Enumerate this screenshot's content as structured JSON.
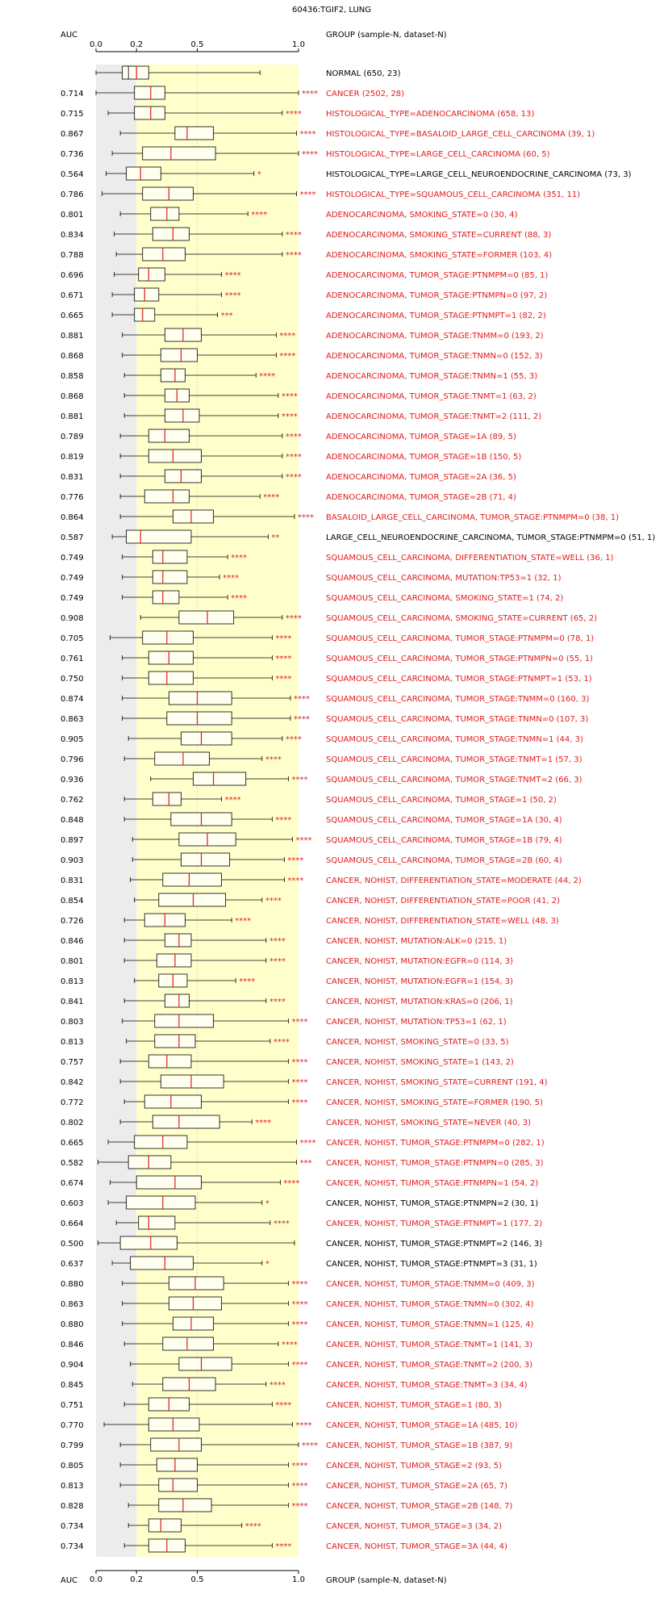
{
  "chart_data": {
    "type": "boxplot",
    "title": "60436:TGIF2, LUNG",
    "header_left": "AUC",
    "header_right": "GROUP (sample-N, dataset-N)",
    "x_ticks": [
      "0.0",
      "0.2",
      "0.5",
      "1.0"
    ],
    "xlim": [
      0,
      1
    ],
    "rows": [
      {
        "auc": "",
        "label": "NORMAL (650, 23)",
        "stars": "",
        "sig": false,
        "box": [
          0.0,
          0.13,
          0.2,
          0.26,
          0.81
        ]
      },
      {
        "auc": "0.714",
        "label": "CANCER (2502, 28)",
        "stars": "****",
        "sig": true,
        "box": [
          0.0,
          0.19,
          0.27,
          0.34,
          1.0
        ]
      },
      {
        "auc": "0.715",
        "label": "HISTOLOGICAL_TYPE=ADENOCARCINOMA (658, 13)",
        "stars": "****",
        "sig": true,
        "box": [
          0.06,
          0.19,
          0.27,
          0.34,
          0.92
        ]
      },
      {
        "auc": "0.867",
        "label": "HISTOLOGICAL_TYPE=BASALOID_LARGE_CELL_CARCINOMA (39, 1)",
        "stars": "****",
        "sig": true,
        "box": [
          0.12,
          0.39,
          0.45,
          0.58,
          0.99
        ]
      },
      {
        "auc": "0.736",
        "label": "HISTOLOGICAL_TYPE=LARGE_CELL_CARCINOMA (60, 5)",
        "stars": "****",
        "sig": true,
        "box": [
          0.08,
          0.23,
          0.37,
          0.59,
          1.0
        ]
      },
      {
        "auc": "0.564",
        "label": "HISTOLOGICAL_TYPE=LARGE_CELL_NEUROENDOCRINE_CARCINOMA (73, 3)",
        "stars": "*",
        "sig": false,
        "box": [
          0.05,
          0.15,
          0.22,
          0.32,
          0.78
        ]
      },
      {
        "auc": "0.786",
        "label": "HISTOLOGICAL_TYPE=SQUAMOUS_CELL_CARCINOMA (351, 11)",
        "stars": "****",
        "sig": true,
        "box": [
          0.03,
          0.23,
          0.36,
          0.48,
          0.99
        ]
      },
      {
        "auc": "0.801",
        "label": "ADENOCARCINOMA, SMOKING_STATE=0 (30, 4)",
        "stars": "****",
        "sig": true,
        "box": [
          0.12,
          0.27,
          0.35,
          0.41,
          0.75
        ]
      },
      {
        "auc": "0.834",
        "label": "ADENOCARCINOMA, SMOKING_STATE=CURRENT (88, 3)",
        "stars": "****",
        "sig": true,
        "box": [
          0.09,
          0.28,
          0.38,
          0.46,
          0.92
        ]
      },
      {
        "auc": "0.788",
        "label": "ADENOCARCINOMA, SMOKING_STATE=FORMER (103, 4)",
        "stars": "****",
        "sig": true,
        "box": [
          0.1,
          0.23,
          0.33,
          0.44,
          0.92
        ]
      },
      {
        "auc": "0.696",
        "label": "ADENOCARCINOMA, TUMOR_STAGE:PTNMPM=0 (85, 1)",
        "stars": "****",
        "sig": true,
        "box": [
          0.09,
          0.21,
          0.26,
          0.34,
          0.62
        ]
      },
      {
        "auc": "0.671",
        "label": "ADENOCARCINOMA, TUMOR_STAGE:PTNMPN=0 (97, 2)",
        "stars": "****",
        "sig": true,
        "box": [
          0.08,
          0.19,
          0.24,
          0.31,
          0.62
        ]
      },
      {
        "auc": "0.665",
        "label": "ADENOCARCINOMA, TUMOR_STAGE:PTNMPT=1 (82, 2)",
        "stars": "***",
        "sig": true,
        "box": [
          0.08,
          0.19,
          0.23,
          0.29,
          0.6
        ]
      },
      {
        "auc": "0.881",
        "label": "ADENOCARCINOMA, TUMOR_STAGE:TNMM=0 (193, 2)",
        "stars": "****",
        "sig": true,
        "box": [
          0.13,
          0.34,
          0.43,
          0.52,
          0.89
        ]
      },
      {
        "auc": "0.868",
        "label": "ADENOCARCINOMA, TUMOR_STAGE:TNMN=0 (152, 3)",
        "stars": "****",
        "sig": true,
        "box": [
          0.13,
          0.32,
          0.42,
          0.5,
          0.89
        ]
      },
      {
        "auc": "0.858",
        "label": "ADENOCARCINOMA, TUMOR_STAGE:TNMN=1 (55, 3)",
        "stars": "****",
        "sig": true,
        "box": [
          0.14,
          0.32,
          0.39,
          0.44,
          0.79
        ]
      },
      {
        "auc": "0.868",
        "label": "ADENOCARCINOMA, TUMOR_STAGE:TNMT=1 (63, 2)",
        "stars": "****",
        "sig": true,
        "box": [
          0.14,
          0.34,
          0.4,
          0.46,
          0.9
        ]
      },
      {
        "auc": "0.881",
        "label": "ADENOCARCINOMA, TUMOR_STAGE:TNMT=2 (111, 2)",
        "stars": "****",
        "sig": true,
        "box": [
          0.14,
          0.34,
          0.43,
          0.51,
          0.9
        ]
      },
      {
        "auc": "0.789",
        "label": "ADENOCARCINOMA, TUMOR_STAGE=1A (89, 5)",
        "stars": "****",
        "sig": true,
        "box": [
          0.12,
          0.26,
          0.34,
          0.46,
          0.92
        ]
      },
      {
        "auc": "0.819",
        "label": "ADENOCARCINOMA, TUMOR_STAGE=1B (150, 5)",
        "stars": "****",
        "sig": true,
        "box": [
          0.12,
          0.26,
          0.38,
          0.52,
          0.92
        ]
      },
      {
        "auc": "0.831",
        "label": "ADENOCARCINOMA, TUMOR_STAGE=2A (36, 5)",
        "stars": "****",
        "sig": true,
        "box": [
          0.12,
          0.34,
          0.42,
          0.52,
          0.92
        ]
      },
      {
        "auc": "0.776",
        "label": "ADENOCARCINOMA, TUMOR_STAGE=2B (71, 4)",
        "stars": "****",
        "sig": true,
        "box": [
          0.12,
          0.24,
          0.38,
          0.46,
          0.81
        ]
      },
      {
        "auc": "0.864",
        "label": "BASALOID_LARGE_CELL_CARCINOMA, TUMOR_STAGE:PTNMPM=0 (38, 1)",
        "stars": "****",
        "sig": true,
        "box": [
          0.12,
          0.38,
          0.47,
          0.58,
          0.98
        ]
      },
      {
        "auc": "0.587",
        "label": "LARGE_CELL_NEUROENDOCRINE_CARCINOMA, TUMOR_STAGE:PTNMPM=0 (51, 1)",
        "stars": "**",
        "sig": false,
        "box": [
          0.08,
          0.15,
          0.22,
          0.47,
          0.85
        ]
      },
      {
        "auc": "0.749",
        "label": "SQUAMOUS_CELL_CARCINOMA, DIFFERENTIATION_STATE=WELL (36, 1)",
        "stars": "****",
        "sig": true,
        "box": [
          0.13,
          0.28,
          0.33,
          0.45,
          0.65
        ]
      },
      {
        "auc": "0.749",
        "label": "SQUAMOUS_CELL_CARCINOMA, MUTATION:TP53=1 (32, 1)",
        "stars": "****",
        "sig": true,
        "box": [
          0.13,
          0.28,
          0.33,
          0.45,
          0.61
        ]
      },
      {
        "auc": "0.749",
        "label": "SQUAMOUS_CELL_CARCINOMA, SMOKING_STATE=1 (74, 2)",
        "stars": "****",
        "sig": true,
        "box": [
          0.13,
          0.28,
          0.33,
          0.41,
          0.65
        ]
      },
      {
        "auc": "0.908",
        "label": "SQUAMOUS_CELL_CARCINOMA, SMOKING_STATE=CURRENT (65, 2)",
        "stars": "****",
        "sig": true,
        "box": [
          0.22,
          0.41,
          0.55,
          0.68,
          0.92
        ]
      },
      {
        "auc": "0.705",
        "label": "SQUAMOUS_CELL_CARCINOMA, TUMOR_STAGE:PTNMPM=0 (78, 1)",
        "stars": "****",
        "sig": true,
        "box": [
          0.07,
          0.23,
          0.35,
          0.48,
          0.87
        ]
      },
      {
        "auc": "0.761",
        "label": "SQUAMOUS_CELL_CARCINOMA, TUMOR_STAGE:PTNMPN=0 (55, 1)",
        "stars": "****",
        "sig": true,
        "box": [
          0.13,
          0.26,
          0.36,
          0.48,
          0.87
        ]
      },
      {
        "auc": "0.750",
        "label": "SQUAMOUS_CELL_CARCINOMA, TUMOR_STAGE:PTNMPT=1 (53, 1)",
        "stars": "****",
        "sig": true,
        "box": [
          0.13,
          0.26,
          0.35,
          0.48,
          0.87
        ]
      },
      {
        "auc": "0.874",
        "label": "SQUAMOUS_CELL_CARCINOMA, TUMOR_STAGE:TNMM=0 (160, 3)",
        "stars": "****",
        "sig": true,
        "box": [
          0.13,
          0.36,
          0.5,
          0.67,
          0.96
        ]
      },
      {
        "auc": "0.863",
        "label": "SQUAMOUS_CELL_CARCINOMA, TUMOR_STAGE:TNMN=0 (107, 3)",
        "stars": "****",
        "sig": true,
        "box": [
          0.13,
          0.35,
          0.5,
          0.67,
          0.96
        ]
      },
      {
        "auc": "0.905",
        "label": "SQUAMOUS_CELL_CARCINOMA, TUMOR_STAGE:TNMN=1 (44, 3)",
        "stars": "****",
        "sig": true,
        "box": [
          0.16,
          0.42,
          0.52,
          0.67,
          0.92
        ]
      },
      {
        "auc": "0.796",
        "label": "SQUAMOUS_CELL_CARCINOMA, TUMOR_STAGE:TNMT=1 (57, 3)",
        "stars": "****",
        "sig": true,
        "box": [
          0.14,
          0.29,
          0.43,
          0.56,
          0.82
        ]
      },
      {
        "auc": "0.936",
        "label": "SQUAMOUS_CELL_CARCINOMA, TUMOR_STAGE:TNMT=2 (66, 3)",
        "stars": "****",
        "sig": true,
        "box": [
          0.27,
          0.48,
          0.58,
          0.74,
          0.95
        ]
      },
      {
        "auc": "0.762",
        "label": "SQUAMOUS_CELL_CARCINOMA, TUMOR_STAGE=1 (50, 2)",
        "stars": "****",
        "sig": true,
        "box": [
          0.14,
          0.28,
          0.36,
          0.42,
          0.62
        ]
      },
      {
        "auc": "0.848",
        "label": "SQUAMOUS_CELL_CARCINOMA, TUMOR_STAGE=1A (30, 4)",
        "stars": "****",
        "sig": true,
        "box": [
          0.14,
          0.37,
          0.52,
          0.67,
          0.87
        ]
      },
      {
        "auc": "0.897",
        "label": "SQUAMOUS_CELL_CARCINOMA, TUMOR_STAGE=1B (79, 4)",
        "stars": "****",
        "sig": true,
        "box": [
          0.18,
          0.41,
          0.55,
          0.69,
          0.97
        ]
      },
      {
        "auc": "0.903",
        "label": "SQUAMOUS_CELL_CARCINOMA, TUMOR_STAGE=2B (60, 4)",
        "stars": "****",
        "sig": true,
        "box": [
          0.18,
          0.42,
          0.52,
          0.66,
          0.93
        ]
      },
      {
        "auc": "0.831",
        "label": "CANCER, NOHIST, DIFFERENTIATION_STATE=MODERATE (44, 2)",
        "stars": "****",
        "sig": true,
        "box": [
          0.17,
          0.33,
          0.46,
          0.62,
          0.93
        ]
      },
      {
        "auc": "0.854",
        "label": "CANCER, NOHIST, DIFFERENTIATION_STATE=POOR (41, 2)",
        "stars": "****",
        "sig": true,
        "box": [
          0.19,
          0.31,
          0.48,
          0.64,
          0.82
        ]
      },
      {
        "auc": "0.726",
        "label": "CANCER, NOHIST, DIFFERENTIATION_STATE=WELL (48, 3)",
        "stars": "****",
        "sig": true,
        "box": [
          0.14,
          0.24,
          0.34,
          0.44,
          0.67
        ]
      },
      {
        "auc": "0.846",
        "label": "CANCER, NOHIST, MUTATION:ALK=0 (215, 1)",
        "stars": "****",
        "sig": true,
        "box": [
          0.14,
          0.34,
          0.41,
          0.47,
          0.84
        ]
      },
      {
        "auc": "0.801",
        "label": "CANCER, NOHIST, MUTATION:EGFR=0 (114, 3)",
        "stars": "****",
        "sig": true,
        "box": [
          0.14,
          0.3,
          0.39,
          0.47,
          0.84
        ]
      },
      {
        "auc": "0.813",
        "label": "CANCER, NOHIST, MUTATION:EGFR=1 (154, 3)",
        "stars": "****",
        "sig": true,
        "box": [
          0.19,
          0.31,
          0.38,
          0.45,
          0.69
        ]
      },
      {
        "auc": "0.841",
        "label": "CANCER, NOHIST, MUTATION:KRAS=0 (206, 1)",
        "stars": "****",
        "sig": true,
        "box": [
          0.14,
          0.34,
          0.41,
          0.46,
          0.84
        ]
      },
      {
        "auc": "0.803",
        "label": "CANCER, NOHIST, MUTATION:TP53=1 (62, 1)",
        "stars": "****",
        "sig": true,
        "box": [
          0.13,
          0.29,
          0.41,
          0.58,
          0.95
        ]
      },
      {
        "auc": "0.813",
        "label": "CANCER, NOHIST, SMOKING_STATE=0 (33, 5)",
        "stars": "****",
        "sig": true,
        "box": [
          0.15,
          0.29,
          0.41,
          0.49,
          0.86
        ]
      },
      {
        "auc": "0.757",
        "label": "CANCER, NOHIST, SMOKING_STATE=1 (143, 2)",
        "stars": "****",
        "sig": true,
        "box": [
          0.12,
          0.26,
          0.35,
          0.47,
          0.95
        ]
      },
      {
        "auc": "0.842",
        "label": "CANCER, NOHIST, SMOKING_STATE=CURRENT (191, 4)",
        "stars": "****",
        "sig": true,
        "box": [
          0.12,
          0.32,
          0.47,
          0.63,
          0.95
        ]
      },
      {
        "auc": "0.772",
        "label": "CANCER, NOHIST, SMOKING_STATE=FORMER (190, 5)",
        "stars": "****",
        "sig": true,
        "box": [
          0.14,
          0.24,
          0.37,
          0.52,
          0.95
        ]
      },
      {
        "auc": "0.802",
        "label": "CANCER, NOHIST, SMOKING_STATE=NEVER (40, 3)",
        "stars": "****",
        "sig": true,
        "box": [
          0.12,
          0.28,
          0.41,
          0.61,
          0.77
        ]
      },
      {
        "auc": "0.665",
        "label": "CANCER, NOHIST, TUMOR_STAGE:PTNMPM=0 (282, 1)",
        "stars": "****",
        "sig": true,
        "box": [
          0.06,
          0.19,
          0.33,
          0.45,
          0.99
        ]
      },
      {
        "auc": "0.582",
        "label": "CANCER, NOHIST, TUMOR_STAGE:PTNMPN=0 (285, 3)",
        "stars": "***",
        "sig": true,
        "box": [
          0.01,
          0.16,
          0.26,
          0.37,
          0.99
        ]
      },
      {
        "auc": "0.674",
        "label": "CANCER, NOHIST, TUMOR_STAGE:PTNMPN=1 (54, 2)",
        "stars": "****",
        "sig": true,
        "box": [
          0.07,
          0.2,
          0.39,
          0.52,
          0.91
        ]
      },
      {
        "auc": "0.603",
        "label": "CANCER, NOHIST, TUMOR_STAGE:PTNMPN=2 (30, 1)",
        "stars": "*",
        "sig": false,
        "box": [
          0.06,
          0.15,
          0.33,
          0.49,
          0.82
        ]
      },
      {
        "auc": "0.664",
        "label": "CANCER, NOHIST, TUMOR_STAGE:PTNMPT=1 (177, 2)",
        "stars": "****",
        "sig": true,
        "box": [
          0.1,
          0.21,
          0.26,
          0.39,
          0.86
        ]
      },
      {
        "auc": "0.500",
        "label": "CANCER, NOHIST, TUMOR_STAGE:PTNMPT=2 (146, 3)",
        "stars": "",
        "sig": false,
        "box": [
          0.01,
          0.12,
          0.27,
          0.4,
          0.98
        ]
      },
      {
        "auc": "0.637",
        "label": "CANCER, NOHIST, TUMOR_STAGE:PTNMPT=3 (31, 1)",
        "stars": "*",
        "sig": false,
        "box": [
          0.08,
          0.17,
          0.34,
          0.48,
          0.82
        ]
      },
      {
        "auc": "0.880",
        "label": "CANCER, NOHIST, TUMOR_STAGE:TNMM=0 (409, 3)",
        "stars": "****",
        "sig": true,
        "box": [
          0.13,
          0.36,
          0.49,
          0.63,
          0.95
        ]
      },
      {
        "auc": "0.863",
        "label": "CANCER, NOHIST, TUMOR_STAGE:TNMN=0 (302, 4)",
        "stars": "****",
        "sig": true,
        "box": [
          0.13,
          0.36,
          0.48,
          0.62,
          0.95
        ]
      },
      {
        "auc": "0.880",
        "label": "CANCER, NOHIST, TUMOR_STAGE:TNMN=1 (125, 4)",
        "stars": "****",
        "sig": true,
        "box": [
          0.13,
          0.38,
          0.47,
          0.58,
          0.95
        ]
      },
      {
        "auc": "0.846",
        "label": "CANCER, NOHIST, TUMOR_STAGE:TNMT=1 (141, 3)",
        "stars": "****",
        "sig": true,
        "box": [
          0.14,
          0.33,
          0.45,
          0.58,
          0.9
        ]
      },
      {
        "auc": "0.904",
        "label": "CANCER, NOHIST, TUMOR_STAGE:TNMT=2 (200, 3)",
        "stars": "****",
        "sig": true,
        "box": [
          0.17,
          0.41,
          0.52,
          0.67,
          0.95
        ]
      },
      {
        "auc": "0.845",
        "label": "CANCER, NOHIST, TUMOR_STAGE:TNMT=3 (34, 4)",
        "stars": "****",
        "sig": true,
        "box": [
          0.18,
          0.33,
          0.46,
          0.59,
          0.84
        ]
      },
      {
        "auc": "0.751",
        "label": "CANCER, NOHIST, TUMOR_STAGE=1 (80, 3)",
        "stars": "****",
        "sig": true,
        "box": [
          0.14,
          0.26,
          0.36,
          0.46,
          0.87
        ]
      },
      {
        "auc": "0.770",
        "label": "CANCER, NOHIST, TUMOR_STAGE=1A (485, 10)",
        "stars": "****",
        "sig": true,
        "box": [
          0.04,
          0.26,
          0.38,
          0.51,
          0.97
        ]
      },
      {
        "auc": "0.799",
        "label": "CANCER, NOHIST, TUMOR_STAGE=1B (387, 9)",
        "stars": "****",
        "sig": true,
        "box": [
          0.12,
          0.27,
          0.41,
          0.52,
          1.0
        ]
      },
      {
        "auc": "0.805",
        "label": "CANCER, NOHIST, TUMOR_STAGE=2 (93, 5)",
        "stars": "****",
        "sig": true,
        "box": [
          0.12,
          0.3,
          0.39,
          0.5,
          0.95
        ]
      },
      {
        "auc": "0.813",
        "label": "CANCER, NOHIST, TUMOR_STAGE=2A (65, 7)",
        "stars": "****",
        "sig": true,
        "box": [
          0.12,
          0.31,
          0.38,
          0.5,
          0.95
        ]
      },
      {
        "auc": "0.828",
        "label": "CANCER, NOHIST, TUMOR_STAGE=2B (148, 7)",
        "stars": "****",
        "sig": true,
        "box": [
          0.16,
          0.31,
          0.43,
          0.57,
          0.95
        ]
      },
      {
        "auc": "0.734",
        "label": "CANCER, NOHIST, TUMOR_STAGE=3 (34, 2)",
        "stars": "****",
        "sig": true,
        "box": [
          0.16,
          0.26,
          0.32,
          0.42,
          0.72
        ]
      },
      {
        "auc": "0.734",
        "label": "CANCER, NOHIST, TUMOR_STAGE=3A (44, 4)",
        "stars": "****",
        "sig": true,
        "box": [
          0.14,
          0.26,
          0.35,
          0.44,
          0.87
        ]
      }
    ]
  },
  "colors": {
    "significant": "#e31a1c",
    "median": "#e31a1c",
    "normal_band": "#ececec",
    "highlight_band": "#ffffcc",
    "box_fill": "#fffff0",
    "line": "#000000"
  }
}
